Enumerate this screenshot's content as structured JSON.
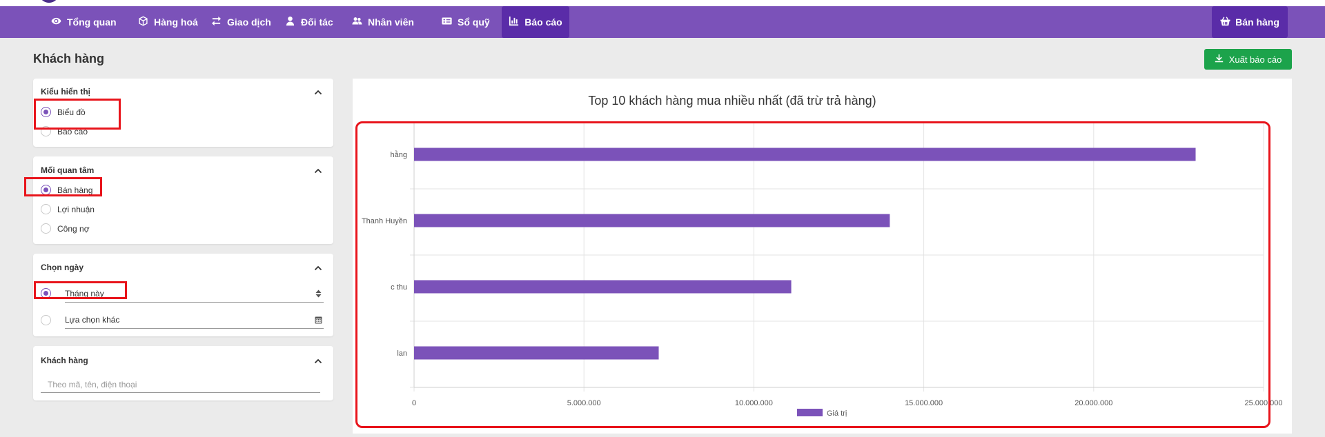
{
  "nav": {
    "items": [
      {
        "label": "Tổng quan",
        "icon": "eye-icon"
      },
      {
        "label": "Hàng hoá",
        "icon": "cube-icon"
      },
      {
        "label": "Giao dịch",
        "icon": "exchange-icon"
      },
      {
        "label": "Đối tác",
        "icon": "user-icon"
      },
      {
        "label": "Nhân viên",
        "icon": "users-icon"
      },
      {
        "label": "Sổ quỹ",
        "icon": "ledger-icon"
      },
      {
        "label": "Báo cáo",
        "icon": "bar-chart-icon"
      }
    ],
    "sell_label": "Bán hàng"
  },
  "page": {
    "title": "Khách hàng",
    "export_label": "Xuất báo cáo"
  },
  "filters": {
    "display": {
      "title": "Kiểu hiển thị",
      "options": [
        "Biểu đồ",
        "Báo cáo"
      ]
    },
    "concern": {
      "title": "Mối quan tâm",
      "options": [
        "Bán hàng",
        "Lợi nhuận",
        "Công nợ"
      ]
    },
    "date": {
      "title": "Chọn ngày",
      "preset": "Tháng này",
      "custom": "Lựa chọn khác"
    },
    "customer": {
      "title": "Khách hàng",
      "placeholder": "Theo mã, tên, điện thoại"
    }
  },
  "chart_data": {
    "type": "bar",
    "orientation": "horizontal",
    "title": "Top 10 khách hàng mua nhiều nhất (đã trừ trả hàng)",
    "categories": [
      "hằng",
      "Thanh Huyền",
      "c thu",
      "lan"
    ],
    "series": [
      {
        "name": "Giá trị",
        "values": [
          23000000,
          14000000,
          11100000,
          7200000
        ],
        "color": "#7b52b9"
      }
    ],
    "xlim": [
      0,
      25000000
    ],
    "x_ticks": [
      "0",
      "5.000.000",
      "10.000.000",
      "15.000.000",
      "20.000.000",
      "25.000.000"
    ],
    "grid": true,
    "legend_position": "bottom"
  },
  "colors": {
    "brand": "#7b52b9",
    "brand_dark": "#5a2ca8",
    "export": "#1ca34b",
    "highlight": "#e8141b"
  }
}
